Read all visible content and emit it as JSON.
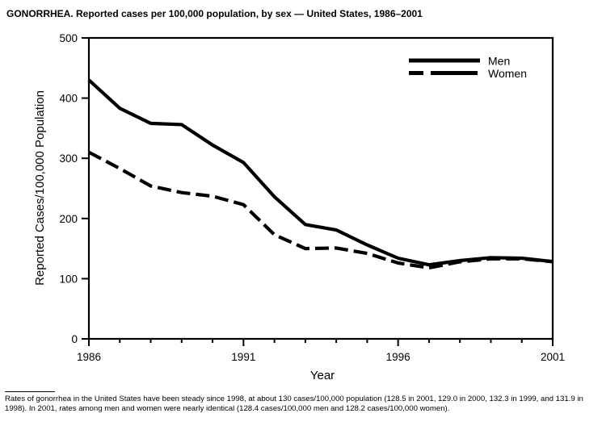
{
  "chart_data": {
    "type": "line",
    "title": "GONORRHEA. Reported cases per 100,000 population, by sex — United States, 1986–2001",
    "x": [
      1986,
      1987,
      1988,
      1989,
      1990,
      1991,
      1992,
      1993,
      1994,
      1995,
      1996,
      1997,
      1998,
      1999,
      2000,
      2001
    ],
    "series": [
      {
        "name": "Men",
        "line_style": "solid",
        "values": [
          430,
          383,
          358,
          356,
          322,
          293,
          236,
          190,
          181,
          156,
          134,
          123,
          130,
          135,
          134,
          128.4
        ]
      },
      {
        "name": "Women",
        "line_style": "dashed",
        "values": [
          310,
          283,
          254,
          243,
          237,
          223,
          173,
          150,
          151,
          142,
          126,
          118,
          128,
          133,
          133,
          128.2
        ]
      }
    ],
    "xlabel": "Year",
    "ylabel": "Reported Cases/100,000 Population",
    "xlim": [
      1986,
      2001
    ],
    "ylim": [
      0,
      500
    ],
    "yticks": [
      0,
      100,
      200,
      300,
      400,
      500
    ],
    "xticks_major": [
      1986,
      1991,
      1996,
      2001
    ],
    "xticks_minor_every_year": true,
    "grid": false,
    "legend_position": "top-right",
    "line_color": "#000000",
    "background": "#ffffff"
  },
  "footnote": {
    "text": "Rates of gonorrhea in the United States have been steady since 1998, at about 130 cases/100,000 population (128.5 in 2001, 129.0 in 2000, 132.3 in 1999, and 131.9 in 1998). In 2001, rates among men and women were nearly identical (128.4 cases/100,000 men and 128.2 cases/100,000 women)."
  }
}
